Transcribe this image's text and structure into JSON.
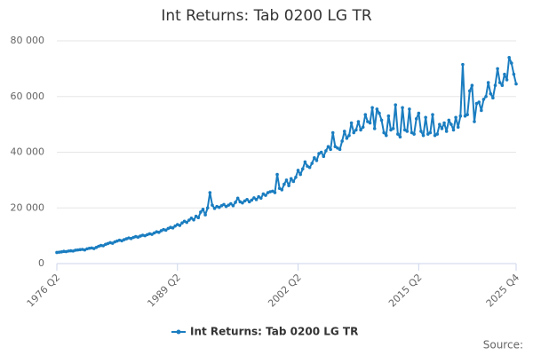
{
  "chart_data": {
    "type": "line",
    "title": "Int Returns: Tab 0200 LG TR",
    "source": "Source:",
    "categories": [
      "1976 Q2",
      null,
      null,
      null,
      null,
      null,
      null,
      null,
      null,
      null,
      null,
      null,
      null,
      null,
      null,
      null,
      null,
      null,
      null,
      null,
      null,
      null,
      null,
      null,
      null,
      null,
      null,
      null,
      null,
      null,
      null,
      null,
      null,
      null,
      null,
      null,
      null,
      null,
      null,
      null,
      null,
      null,
      null,
      null,
      null,
      null,
      null,
      null,
      null,
      null,
      null,
      null,
      "1989 Q2",
      null,
      null,
      null,
      null,
      null,
      null,
      null,
      null,
      null,
      null,
      null,
      null,
      null,
      null,
      null,
      null,
      null,
      null,
      null,
      null,
      null,
      null,
      null,
      null,
      null,
      null,
      null,
      null,
      null,
      null,
      null,
      null,
      null,
      null,
      null,
      null,
      null,
      null,
      null,
      null,
      null,
      null,
      null,
      null,
      null,
      null,
      null,
      null,
      null,
      null,
      null,
      "2002 Q2",
      null,
      null,
      null,
      null,
      null,
      null,
      null,
      null,
      null,
      null,
      null,
      null,
      null,
      null,
      null,
      null,
      null,
      null,
      null,
      null,
      null,
      null,
      null,
      null,
      null,
      null,
      null,
      null,
      null,
      null,
      null,
      null,
      null,
      null,
      null,
      null,
      null,
      null,
      null,
      null,
      null,
      null,
      null,
      null,
      null,
      null,
      null,
      null,
      null,
      null,
      null,
      "2015 Q2",
      null,
      null,
      null,
      null,
      null,
      null,
      null,
      null,
      null,
      null,
      null,
      null,
      null,
      null,
      null,
      null,
      null,
      null,
      null,
      null,
      null,
      null,
      null,
      null,
      null,
      null,
      null,
      null,
      null,
      null,
      null,
      null,
      null,
      null,
      null,
      null,
      null,
      null,
      null,
      null,
      null,
      "2025 Q4"
    ],
    "series": [
      {
        "name": "Int Returns: Tab 0200 LG TR",
        "color": "#1a7dc0",
        "values": [
          4000,
          4100,
          4200,
          4400,
          4300,
          4500,
          4600,
          4500,
          4800,
          4900,
          5000,
          5100,
          4900,
          5300,
          5500,
          5600,
          5400,
          5800,
          6200,
          6500,
          6400,
          6900,
          7200,
          7500,
          7300,
          7800,
          8100,
          8400,
          8200,
          8600,
          8900,
          9200,
          9000,
          9400,
          9700,
          9500,
          9900,
          10200,
          10000,
          10400,
          10700,
          10500,
          11000,
          11400,
          11200,
          11800,
          12200,
          12000,
          12600,
          13000,
          12800,
          13500,
          14000,
          13700,
          14600,
          15200,
          14800,
          15600,
          16300,
          15700,
          17000,
          16500,
          18500,
          19500,
          17500,
          20000,
          25500,
          21000,
          19800,
          20500,
          20200,
          20800,
          21200,
          20500,
          21000,
          21500,
          20800,
          22000,
          23500,
          22200,
          21800,
          22500,
          23000,
          22200,
          22800,
          23600,
          23000,
          24000,
          23500,
          25000,
          24500,
          25500,
          25800,
          26000,
          25500,
          32000,
          27000,
          26500,
          28500,
          30000,
          28000,
          30500,
          29500,
          31000,
          33500,
          32000,
          34000,
          36500,
          35000,
          34500,
          36000,
          38000,
          37000,
          39500,
          40000,
          38500,
          40500,
          42000,
          41000,
          47000,
          42000,
          41500,
          41000,
          44000,
          47500,
          45000,
          46000,
          50500,
          47000,
          48000,
          51000,
          48000,
          49000,
          53500,
          51000,
          50500,
          56000,
          48500,
          55500,
          54000,
          51500,
          47000,
          46000,
          53000,
          48000,
          48500,
          57000,
          46500,
          45500,
          56000,
          48000,
          47500,
          55500,
          47000,
          46500,
          52000,
          54000,
          47500,
          46000,
          52500,
          46500,
          47000,
          53500,
          46000,
          46500,
          50000,
          48500,
          50500,
          47500,
          51500,
          50000,
          48000,
          52500,
          49000,
          53000,
          71500,
          53000,
          53500,
          62000,
          64000,
          51000,
          57500,
          58000,
          55000,
          59000,
          60000,
          65000,
          61000,
          59500,
          64000,
          70000,
          65000,
          64000,
          68000,
          66000,
          74000,
          72000,
          68000,
          64500
        ]
      }
    ],
    "ylim": [
      0,
      80000
    ],
    "yticks": [
      0,
      {
        "value": 20000,
        "label": "20 000"
      },
      {
        "value": 40000,
        "label": "40 000"
      },
      {
        "value": 60000,
        "label": "60 000"
      },
      {
        "value": 80000,
        "label": "80 000"
      }
    ],
    "grid": true,
    "legend": "bottom"
  }
}
